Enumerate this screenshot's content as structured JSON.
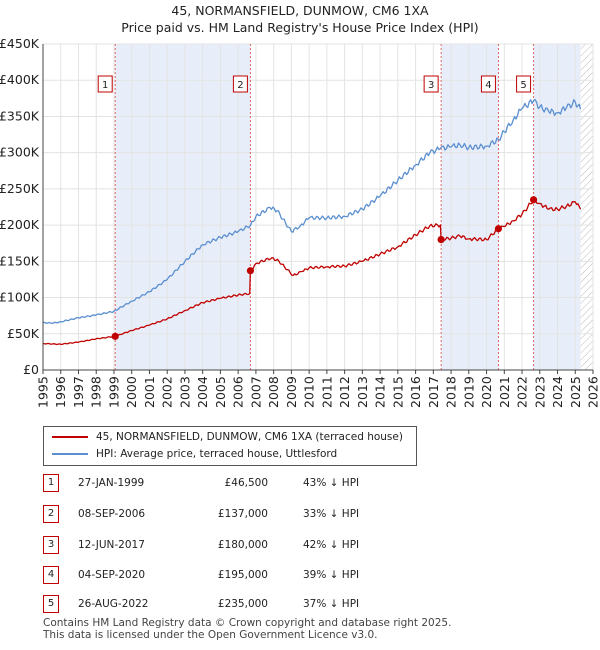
{
  "title_line1": "45, NORMANSFIELD, DUNMOW, CM6 1XA",
  "title_line2": "Price paid vs. HM Land Registry's House Price Index (HPI)",
  "chart_data": {
    "type": "line",
    "title": "45, NORMANSFIELD, DUNMOW, CM6 1XA — Price paid vs. HM Land Registry's House Price Index (HPI)",
    "xlim": [
      1995,
      2026
    ],
    "ylim": [
      0,
      450000
    ],
    "xticks": [
      1995,
      1996,
      1997,
      1998,
      1999,
      2000,
      2001,
      2002,
      2003,
      2004,
      2005,
      2006,
      2007,
      2008,
      2009,
      2010,
      2011,
      2012,
      2013,
      2014,
      2015,
      2016,
      2017,
      2018,
      2019,
      2020,
      2021,
      2022,
      2023,
      2024,
      2025,
      2026
    ],
    "yticks": [
      {
        "value": 0,
        "label": "£0"
      },
      {
        "value": 50000,
        "label": "£50K"
      },
      {
        "value": 100000,
        "label": "£100K"
      },
      {
        "value": 150000,
        "label": "£150K"
      },
      {
        "value": 200000,
        "label": "£200K"
      },
      {
        "value": 250000,
        "label": "£250K"
      },
      {
        "value": 300000,
        "label": "£300K"
      },
      {
        "value": 350000,
        "label": "£350K"
      },
      {
        "value": 400000,
        "label": "£400K"
      },
      {
        "value": 450000,
        "label": "£450K"
      }
    ],
    "grid": true,
    "shaded_ranges": [
      [
        1999.07,
        2006.69
      ],
      [
        2017.44,
        2020.67
      ],
      [
        2022.65,
        2025.3
      ]
    ],
    "future_hatch_start": 2025.3,
    "series": [
      {
        "name": "45, NORMANSFIELD, DUNMOW, CM6 1XA (terraced house)",
        "color": "#c00000",
        "points": [
          [
            1995,
            36500
          ],
          [
            1996,
            35500
          ],
          [
            1997,
            38500
          ],
          [
            1998,
            43000
          ],
          [
            1999.07,
            46500
          ],
          [
            2000,
            54500
          ],
          [
            2001,
            62000
          ],
          [
            2002,
            70500
          ],
          [
            2003,
            82000
          ],
          [
            2004,
            93000
          ],
          [
            2005,
            99000
          ],
          [
            2006,
            103500
          ],
          [
            2006.65,
            105500
          ],
          [
            2006.69,
            137000
          ],
          [
            2007,
            147000
          ],
          [
            2007.9,
            155000
          ],
          [
            2008.3,
            150000
          ],
          [
            2009.1,
            130500
          ],
          [
            2009.6,
            136000
          ],
          [
            2010,
            141000
          ],
          [
            2011,
            142500
          ],
          [
            2012,
            143500
          ],
          [
            2013,
            150000
          ],
          [
            2014,
            160000
          ],
          [
            2015,
            170000
          ],
          [
            2016,
            186500
          ],
          [
            2016.8,
            199000
          ],
          [
            2017.4,
            200000
          ],
          [
            2017.44,
            180000
          ],
          [
            2018,
            182000
          ],
          [
            2018.5,
            185000
          ],
          [
            2019,
            181000
          ],
          [
            2020,
            180000
          ],
          [
            2020.67,
            195000
          ],
          [
            2021,
            198000
          ],
          [
            2021.5,
            206000
          ],
          [
            2022,
            215000
          ],
          [
            2022.65,
            235000
          ],
          [
            2023,
            230000
          ],
          [
            2023.5,
            222000
          ],
          [
            2024,
            222000
          ],
          [
            2024.5,
            226000
          ],
          [
            2025,
            232000
          ],
          [
            2025.3,
            222000
          ]
        ]
      },
      {
        "name": "HPI: Average price, terraced house, Uttlesford",
        "color": "#5b8fd0",
        "points": [
          [
            1995,
            65500
          ],
          [
            1995.5,
            64500
          ],
          [
            1996,
            66500
          ],
          [
            1997,
            72000
          ],
          [
            1998,
            76000
          ],
          [
            1999,
            81000
          ],
          [
            2000,
            95000
          ],
          [
            2001,
            108000
          ],
          [
            2002,
            125000
          ],
          [
            2003,
            150000
          ],
          [
            2004,
            173000
          ],
          [
            2005,
            183000
          ],
          [
            2006,
            191000
          ],
          [
            2006.7,
            200000
          ],
          [
            2007,
            212000
          ],
          [
            2007.8,
            224000
          ],
          [
            2008.2,
            220000
          ],
          [
            2009,
            191000
          ],
          [
            2009.5,
            199000
          ],
          [
            2010,
            210000
          ],
          [
            2011,
            210000
          ],
          [
            2012,
            212000
          ],
          [
            2013,
            222000
          ],
          [
            2014,
            240000
          ],
          [
            2015,
            262000
          ],
          [
            2016,
            283000
          ],
          [
            2016.8,
            300000
          ],
          [
            2017.4,
            306000
          ],
          [
            2018,
            308000
          ],
          [
            2018.5,
            311000
          ],
          [
            2019,
            307000
          ],
          [
            2020,
            309000
          ],
          [
            2020.67,
            318000
          ],
          [
            2021,
            329000
          ],
          [
            2021.5,
            345000
          ],
          [
            2022,
            361000
          ],
          [
            2022.65,
            372000
          ],
          [
            2023,
            363000
          ],
          [
            2023.5,
            357000
          ],
          [
            2024,
            355000
          ],
          [
            2024.5,
            362000
          ],
          [
            2025,
            370000
          ],
          [
            2025.3,
            360000
          ]
        ]
      }
    ],
    "sales": [
      {
        "id": "1",
        "x": 1999.07,
        "value": 46500
      },
      {
        "id": "2",
        "x": 2006.69,
        "value": 137000
      },
      {
        "id": "3",
        "x": 2017.44,
        "value": 180000
      },
      {
        "id": "4",
        "x": 2020.67,
        "value": 195000
      },
      {
        "id": "5",
        "x": 2022.65,
        "value": 235000
      }
    ]
  },
  "legend": {
    "property_label": "45, NORMANSFIELD, DUNMOW, CM6 1XA (terraced house)",
    "hpi_label": "HPI: Average price, terraced house, Uttlesford",
    "property_color": "#c00000",
    "hpi_color": "#5b8fd0"
  },
  "transactions": [
    {
      "num": "1",
      "date": "27-JAN-1999",
      "price": "£46,500",
      "hpi": "43% ↓ HPI"
    },
    {
      "num": "2",
      "date": "08-SEP-2006",
      "price": "£137,000",
      "hpi": "33% ↓ HPI"
    },
    {
      "num": "3",
      "date": "12-JUN-2017",
      "price": "£180,000",
      "hpi": "42% ↓ HPI"
    },
    {
      "num": "4",
      "date": "04-SEP-2020",
      "price": "£195,000",
      "hpi": "39% ↓ HPI"
    },
    {
      "num": "5",
      "date": "26-AUG-2022",
      "price": "£235,000",
      "hpi": "37% ↓ HPI"
    }
  ],
  "footer": {
    "line1": "Contains HM Land Registry data © Crown copyright and database right 2025.",
    "line2": "This data is licensed under the Open Government Licence v3.0."
  }
}
